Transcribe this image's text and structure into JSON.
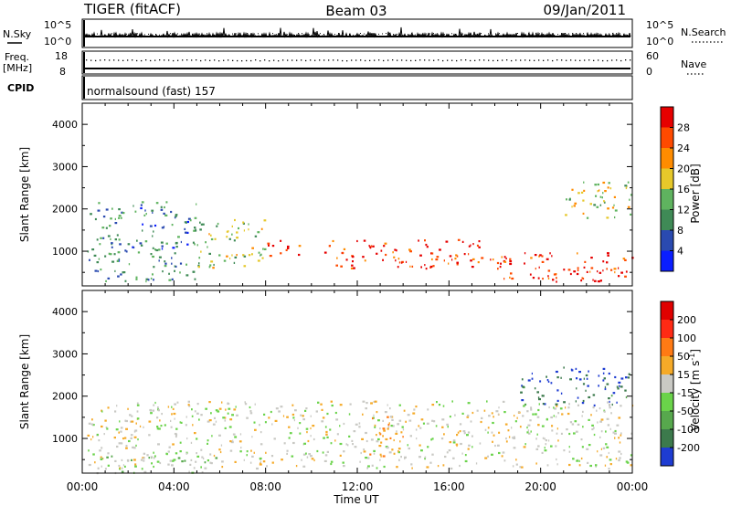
{
  "header": {
    "station": "TIGER (fitACF)",
    "beam": "Beam 03",
    "date": "09/Jan/2011"
  },
  "strips": {
    "nsky_label": "N.Sky",
    "nsky_ticks": [
      "10^5",
      "10^0"
    ],
    "nsearch_label": "N.Search",
    "freq_label_1": "Freq.",
    "freq_label_2": "[MHz]",
    "freq_ticks": [
      "18",
      "8"
    ],
    "nave_label": "Nave",
    "nave_ticks": [
      "60",
      "0"
    ],
    "cpid_label": "CPID",
    "cpid_value": "normalsound (fast) 157"
  },
  "axes": {
    "x_ticks": [
      "00:00",
      "04:00",
      "08:00",
      "12:00",
      "16:00",
      "20:00",
      "00:00"
    ],
    "x_label": "Time UT",
    "y_label": "Slant Range [km]",
    "y_ticks": [
      "1000",
      "2000",
      "3000",
      "4000"
    ]
  },
  "colorbars": {
    "power": {
      "label": "Power [dB]",
      "ticks": [
        "4",
        "8",
        "12",
        "16",
        "20",
        "24",
        "28"
      ],
      "colors": [
        "#0a1eff",
        "#2a4ab0",
        "#3f8a56",
        "#5fb35f",
        "#e6c82a",
        "#ff8c00",
        "#ff4a00",
        "#e60000"
      ]
    },
    "velocity": {
      "label": "Velocity [m s",
      "label_sup": "-1",
      "label_end": "]",
      "ticks": [
        "200",
        "100",
        "50",
        "15",
        "-15",
        "-50",
        "-100",
        "-200"
      ],
      "colors": [
        "#1e3cd2",
        "#3c7a4c",
        "#57a84d",
        "#6ad34a",
        "#c9c9c4",
        "#f5aa28",
        "#ff7a14",
        "#ff2a14",
        "#e00000"
      ]
    }
  },
  "chart_data": [
    {
      "type": "heatmap",
      "title": "",
      "xlabel": "Time UT",
      "ylabel": "Slant Range [km]",
      "x_range": [
        "00:00",
        "24:00"
      ],
      "ylim": [
        180,
        4500
      ],
      "colorbar_label": "Power [dB]",
      "colorbar_range": [
        0,
        30
      ],
      "colors": [
        "#0a1eff",
        "#2a4ab0",
        "#3f8a56",
        "#5fb35f",
        "#e6c82a",
        "#ff8c00",
        "#ff4a00",
        "#e60000"
      ],
      "bands": [
        {
          "start_h": 0.2,
          "end_h": 5.0,
          "range_low_km": 300,
          "range_high_km": 2200,
          "dominant_power_db": 9
        },
        {
          "start_h": 5.0,
          "end_h": 8.0,
          "range_low_km": 600,
          "range_high_km": 1800,
          "dominant_power_db": 14
        },
        {
          "start_h": 8.0,
          "end_h": 9.5,
          "range_low_km": 900,
          "range_high_km": 1300,
          "dominant_power_db": 26
        },
        {
          "start_h": 10.5,
          "end_h": 17.5,
          "range_low_km": 600,
          "range_high_km": 1300,
          "dominant_power_db": 27
        },
        {
          "start_h": 17.5,
          "end_h": 24.0,
          "range_low_km": 300,
          "range_high_km": 1000,
          "dominant_power_db": 26
        },
        {
          "start_h": 21.0,
          "end_h": 24.0,
          "range_low_km": 1800,
          "range_high_km": 2700,
          "dominant_power_db": 16
        }
      ]
    },
    {
      "type": "heatmap",
      "title": "",
      "xlabel": "Time UT",
      "ylabel": "Slant Range [km]",
      "x_range": [
        "00:00",
        "24:00"
      ],
      "ylim": [
        180,
        4500
      ],
      "colorbar_label": "Velocity [m s^-1]",
      "colorbar_range": [
        -200,
        200
      ],
      "colors": [
        "#1e3cd2",
        "#3c7a4c",
        "#57a84d",
        "#6ad34a",
        "#c9c9c4",
        "#f5aa28",
        "#ff7a14",
        "#ff2a14",
        "#e00000"
      ],
      "bands": [
        {
          "start_h": 0.2,
          "end_h": 24.0,
          "range_low_km": 300,
          "range_high_km": 1900,
          "dominant_velocity_ms": 0
        },
        {
          "start_h": 0.5,
          "end_h": 6.0,
          "range_low_km": 200,
          "range_high_km": 600,
          "dominant_velocity_ms": -40
        },
        {
          "start_h": 12.5,
          "end_h": 14.0,
          "range_low_km": 600,
          "range_high_km": 1600,
          "dominant_velocity_ms": 60
        },
        {
          "start_h": 19.0,
          "end_h": 24.0,
          "range_low_km": 1800,
          "range_high_km": 2700,
          "dominant_velocity_ms": -150
        }
      ]
    }
  ]
}
